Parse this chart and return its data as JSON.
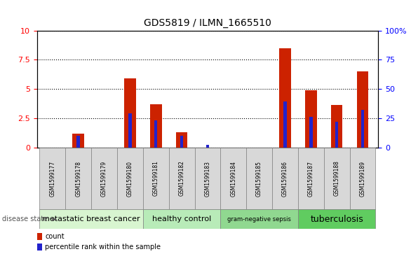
{
  "title": "GDS5819 / ILMN_1665510",
  "samples": [
    "GSM1599177",
    "GSM1599178",
    "GSM1599179",
    "GSM1599180",
    "GSM1599181",
    "GSM1599182",
    "GSM1599183",
    "GSM1599184",
    "GSM1599185",
    "GSM1599186",
    "GSM1599187",
    "GSM1599188",
    "GSM1599189"
  ],
  "counts": [
    0.0,
    1.2,
    0.0,
    5.9,
    3.7,
    1.3,
    0.0,
    0.0,
    0.0,
    8.5,
    4.9,
    3.6,
    6.5
  ],
  "percentiles": [
    0.0,
    10.0,
    0.0,
    29.0,
    23.0,
    10.0,
    2.0,
    0.0,
    0.0,
    39.0,
    26.0,
    22.0,
    32.0
  ],
  "disease_groups": [
    {
      "label": "metastatic breast cancer",
      "start": 0,
      "end": 3,
      "color": "#d8f5d0",
      "fontsize": 8
    },
    {
      "label": "healthy control",
      "start": 4,
      "end": 6,
      "color": "#b8ebb8",
      "fontsize": 8
    },
    {
      "label": "gram-negative sepsis",
      "start": 7,
      "end": 9,
      "color": "#90d890",
      "fontsize": 6
    },
    {
      "label": "tuberculosis",
      "start": 10,
      "end": 12,
      "color": "#60cc60",
      "fontsize": 9
    }
  ],
  "ylim_left": [
    0,
    10
  ],
  "ylim_right": [
    0,
    100
  ],
  "yticks_left": [
    0,
    2.5,
    5.0,
    7.5,
    10
  ],
  "yticks_right": [
    0,
    25,
    50,
    75,
    100
  ],
  "bar_color": "#cc2200",
  "percentile_color": "#2222cc",
  "bar_width": 0.45,
  "percentile_bar_width": 0.12,
  "grid_color": "#000000",
  "sample_bg_color": "#d8d8d8",
  "plot_bg": "#ffffff"
}
